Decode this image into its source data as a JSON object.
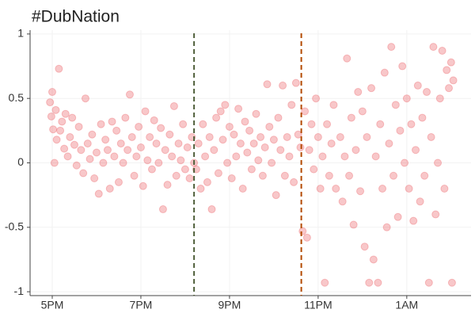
{
  "chart_data": {
    "type": "scatter",
    "title": "#DubNation",
    "color": "#e8474c",
    "opacity": 0.3,
    "grid": true,
    "xlim": [
      16.5,
      26.45
    ],
    "ylim": [
      -1.03,
      1.03
    ],
    "xticks": [
      {
        "value": 17,
        "label": "5PM"
      },
      {
        "value": 19,
        "label": "7PM"
      },
      {
        "value": 21,
        "label": "9PM"
      },
      {
        "value": 23,
        "label": "11PM"
      },
      {
        "value": 25,
        "label": "1AM"
      }
    ],
    "yticks": [
      1,
      0.5,
      0,
      -0.5,
      -1
    ],
    "vlines": [
      {
        "x": 20.2,
        "color": "#4f5f3a"
      },
      {
        "x": 22.62,
        "color": "#b34a00"
      }
    ],
    "x": [
      16.95,
      16.98,
      17.0,
      17.02,
      17.05,
      17.08,
      17.1,
      17.15,
      17.18,
      17.22,
      17.27,
      17.3,
      17.35,
      17.4,
      17.45,
      17.5,
      17.55,
      17.6,
      17.65,
      17.7,
      17.75,
      17.8,
      17.85,
      17.9,
      17.95,
      18.0,
      18.05,
      18.1,
      18.15,
      18.2,
      18.25,
      18.3,
      18.35,
      18.4,
      18.45,
      18.5,
      18.55,
      18.6,
      18.65,
      18.7,
      18.75,
      18.8,
      18.85,
      18.9,
      18.95,
      19.0,
      19.05,
      19.1,
      19.15,
      19.2,
      19.25,
      19.3,
      19.35,
      19.4,
      19.45,
      19.5,
      19.55,
      19.6,
      19.65,
      19.7,
      19.75,
      19.8,
      19.85,
      19.9,
      19.95,
      20.0,
      20.05,
      20.1,
      20.15,
      20.2,
      20.25,
      20.3,
      20.35,
      20.4,
      20.45,
      20.5,
      20.55,
      20.6,
      20.65,
      20.7,
      20.75,
      20.8,
      20.85,
      20.9,
      20.95,
      21.0,
      21.05,
      21.1,
      21.15,
      21.2,
      21.25,
      21.3,
      21.35,
      21.4,
      21.45,
      21.5,
      21.55,
      21.6,
      21.65,
      21.7,
      21.75,
      21.8,
      21.85,
      21.9,
      21.95,
      22.0,
      22.05,
      22.1,
      22.15,
      22.2,
      22.25,
      22.3,
      22.35,
      22.4,
      22.45,
      22.5,
      22.55,
      22.6,
      22.65,
      22.7,
      22.75,
      22.8,
      22.85,
      22.9,
      22.95,
      23.0,
      23.05,
      23.1,
      23.15,
      23.2,
      23.25,
      23.3,
      23.35,
      23.4,
      23.5,
      23.55,
      23.6,
      23.65,
      23.7,
      23.75,
      23.8,
      23.85,
      23.9,
      23.95,
      24.0,
      24.05,
      24.1,
      24.15,
      24.2,
      24.25,
      24.3,
      24.35,
      24.4,
      24.45,
      24.5,
      24.55,
      24.6,
      24.65,
      24.7,
      24.75,
      24.8,
      24.85,
      24.9,
      24.95,
      25.0,
      25.05,
      25.1,
      25.15,
      25.2,
      25.25,
      25.3,
      25.35,
      25.4,
      25.45,
      25.5,
      25.55,
      25.6,
      25.65,
      25.7,
      25.75,
      25.8,
      25.85,
      25.9,
      25.95,
      26.0,
      26.02,
      26.05
    ],
    "values": [
      0.47,
      0.36,
      0.55,
      0.26,
      0.0,
      0.41,
      0.18,
      0.73,
      0.25,
      0.32,
      0.11,
      0.38,
      0.05,
      0.2,
      0.35,
      0.14,
      -0.02,
      0.28,
      0.1,
      -0.08,
      0.5,
      0.15,
      0.03,
      0.22,
      -0.12,
      0.08,
      -0.24,
      0.3,
      0.0,
      0.18,
      0.1,
      -0.2,
      0.32,
      0.05,
      0.25,
      -0.15,
      0.15,
      0.0,
      0.35,
      0.1,
      0.53,
      0.2,
      -0.1,
      0.05,
      0.28,
      0.12,
      -0.18,
      0.4,
      0.02,
      0.2,
      -0.05,
      0.33,
      0.15,
      0.0,
      0.27,
      -0.36,
      0.1,
      -0.17,
      0.22,
      0.05,
      0.44,
      -0.1,
      0.15,
      0.02,
      0.3,
      -0.05,
      0.12,
      -0.12,
      0.2,
      0.0,
      -0.05,
      0.15,
      -0.2,
      0.3,
      0.05,
      -0.15,
      0.2,
      -0.36,
      0.1,
      0.35,
      -0.08,
      0.4,
      0.18,
      0.45,
      0.0,
      0.28,
      -0.12,
      0.22,
      0.05,
      0.42,
      0.15,
      -0.2,
      0.32,
      0.08,
      0.25,
      -0.05,
      0.15,
      0.38,
      0.02,
      0.2,
      -0.1,
      0.12,
      0.61,
      0.28,
      0.0,
      0.18,
      -0.25,
      0.35,
      0.1,
      0.6,
      -0.1,
      0.2,
      0.05,
      0.45,
      -0.15,
      0.62,
      0.22,
      0.12,
      -0.53,
      0.4,
      -0.58,
      0.1,
      0.3,
      -0.05,
      0.5,
      0.2,
      -0.2,
      0.05,
      -0.93,
      0.3,
      -0.1,
      0.15,
      0.45,
      -0.2,
      0.2,
      -0.3,
      0.05,
      0.81,
      -0.1,
      0.35,
      -0.48,
      0.1,
      0.55,
      -0.22,
      0.4,
      -0.65,
      0.2,
      -0.93,
      0.58,
      -0.75,
      0.05,
      -0.93,
      0.3,
      -0.2,
      0.7,
      -0.5,
      0.15,
      0.9,
      -0.1,
      0.45,
      -0.42,
      0.25,
      0.75,
      0.0,
      0.5,
      -0.2,
      0.3,
      -0.45,
      0.1,
      0.6,
      -0.3,
      0.35,
      -0.1,
      0.55,
      -0.93,
      0.2,
      0.9,
      -0.4,
      0.0,
      0.5,
      0.87,
      -0.2,
      0.72,
      0.58,
      0.78,
      -0.93,
      0.64
    ]
  }
}
